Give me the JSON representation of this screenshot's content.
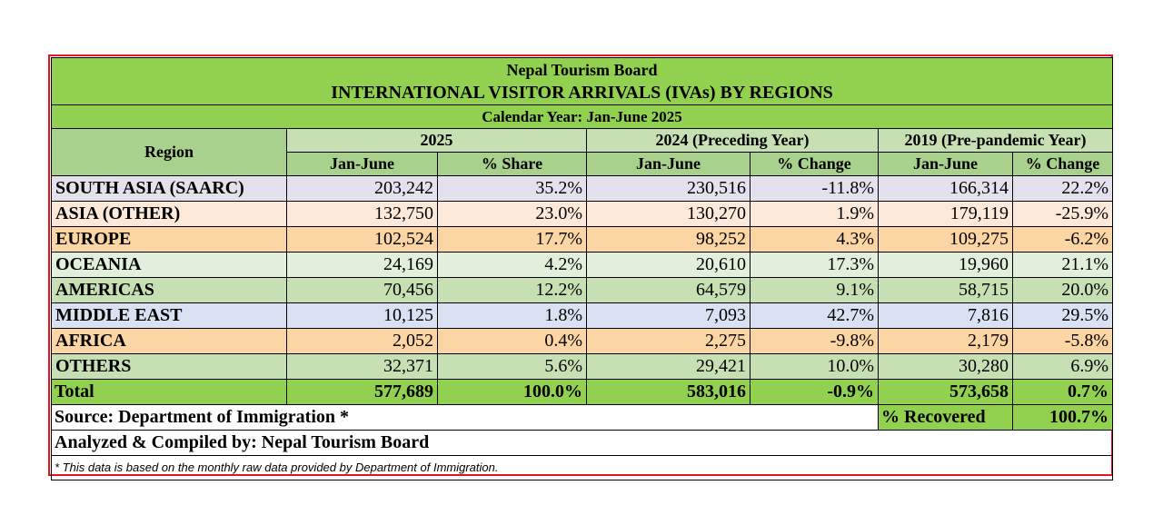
{
  "header": {
    "org": "Nepal Tourism Board",
    "title": "INTERNATIONAL VISITOR ARRIVALS (IVAs)  BY REGIONS",
    "period": "Calendar Year: Jan-June 2025"
  },
  "columns": {
    "region": "Region",
    "group_2025": "2025",
    "group_2024": "2024 (Preceding Year)",
    "group_2019": "2019 (Pre-pandemic Year)",
    "jan_june": "Jan-June",
    "share": "% Share",
    "change": "% Change"
  },
  "row_colors": [
    "#e4e0ec",
    "#fde9d9",
    "#fcd5a4",
    "#e2efda",
    "#c6e0b4",
    "#d9e1f2",
    "#fcd5a4",
    "#c6e0b4"
  ],
  "rows": [
    {
      "region": "SOUTH ASIA (SAARC)",
      "v2025": "203,242",
      "share": "35.2%",
      "v2024": "230,516",
      "chg2024": "-11.8%",
      "v2019": "166,314",
      "chg2019": "22.2%"
    },
    {
      "region": "ASIA (OTHER)",
      "v2025": "132,750",
      "share": "23.0%",
      "v2024": "130,270",
      "chg2024": "1.9%",
      "v2019": "179,119",
      "chg2019": "-25.9%"
    },
    {
      "region": "EUROPE",
      "v2025": "102,524",
      "share": "17.7%",
      "v2024": "98,252",
      "chg2024": "4.3%",
      "v2019": "109,275",
      "chg2019": "-6.2%"
    },
    {
      "region": "OCEANIA",
      "v2025": "24,169",
      "share": "4.2%",
      "v2024": "20,610",
      "chg2024": "17.3%",
      "v2019": "19,960",
      "chg2019": "21.1%"
    },
    {
      "region": "AMERICAS",
      "v2025": "70,456",
      "share": "12.2%",
      "v2024": "64,579",
      "chg2024": "9.1%",
      "v2019": "58,715",
      "chg2019": "20.0%"
    },
    {
      "region": "MIDDLE EAST",
      "v2025": "10,125",
      "share": "1.8%",
      "v2024": "7,093",
      "chg2024": "42.7%",
      "v2019": "7,816",
      "chg2019": "29.5%"
    },
    {
      "region": "AFRICA",
      "v2025": "2,052",
      "share": "0.4%",
      "v2024": "2,275",
      "chg2024": "-9.8%",
      "v2019": "2,179",
      "chg2019": "-5.8%"
    },
    {
      "region": "OTHERS",
      "v2025": "32,371",
      "share": "5.6%",
      "v2024": "29,421",
      "chg2024": "10.0%",
      "v2019": "30,280",
      "chg2019": "6.9%"
    }
  ],
  "total": {
    "region": "Total",
    "v2025": "577,689",
    "share": "100.0%",
    "v2024": "583,016",
    "chg2024": "-0.9%",
    "v2019": "573,658",
    "chg2019": "0.7%"
  },
  "footer": {
    "source": "Source: Department of Immigration *",
    "recovered_label": "% Recovered",
    "recovered_value": "100.7%",
    "compiled": "Analyzed & Compiled by: Nepal Tourism Board",
    "note": "* This data is based on the monthly raw data provided by Department of Immigration."
  },
  "colors": {
    "header_green": "#92d050",
    "frame_red": "#e8141c"
  }
}
